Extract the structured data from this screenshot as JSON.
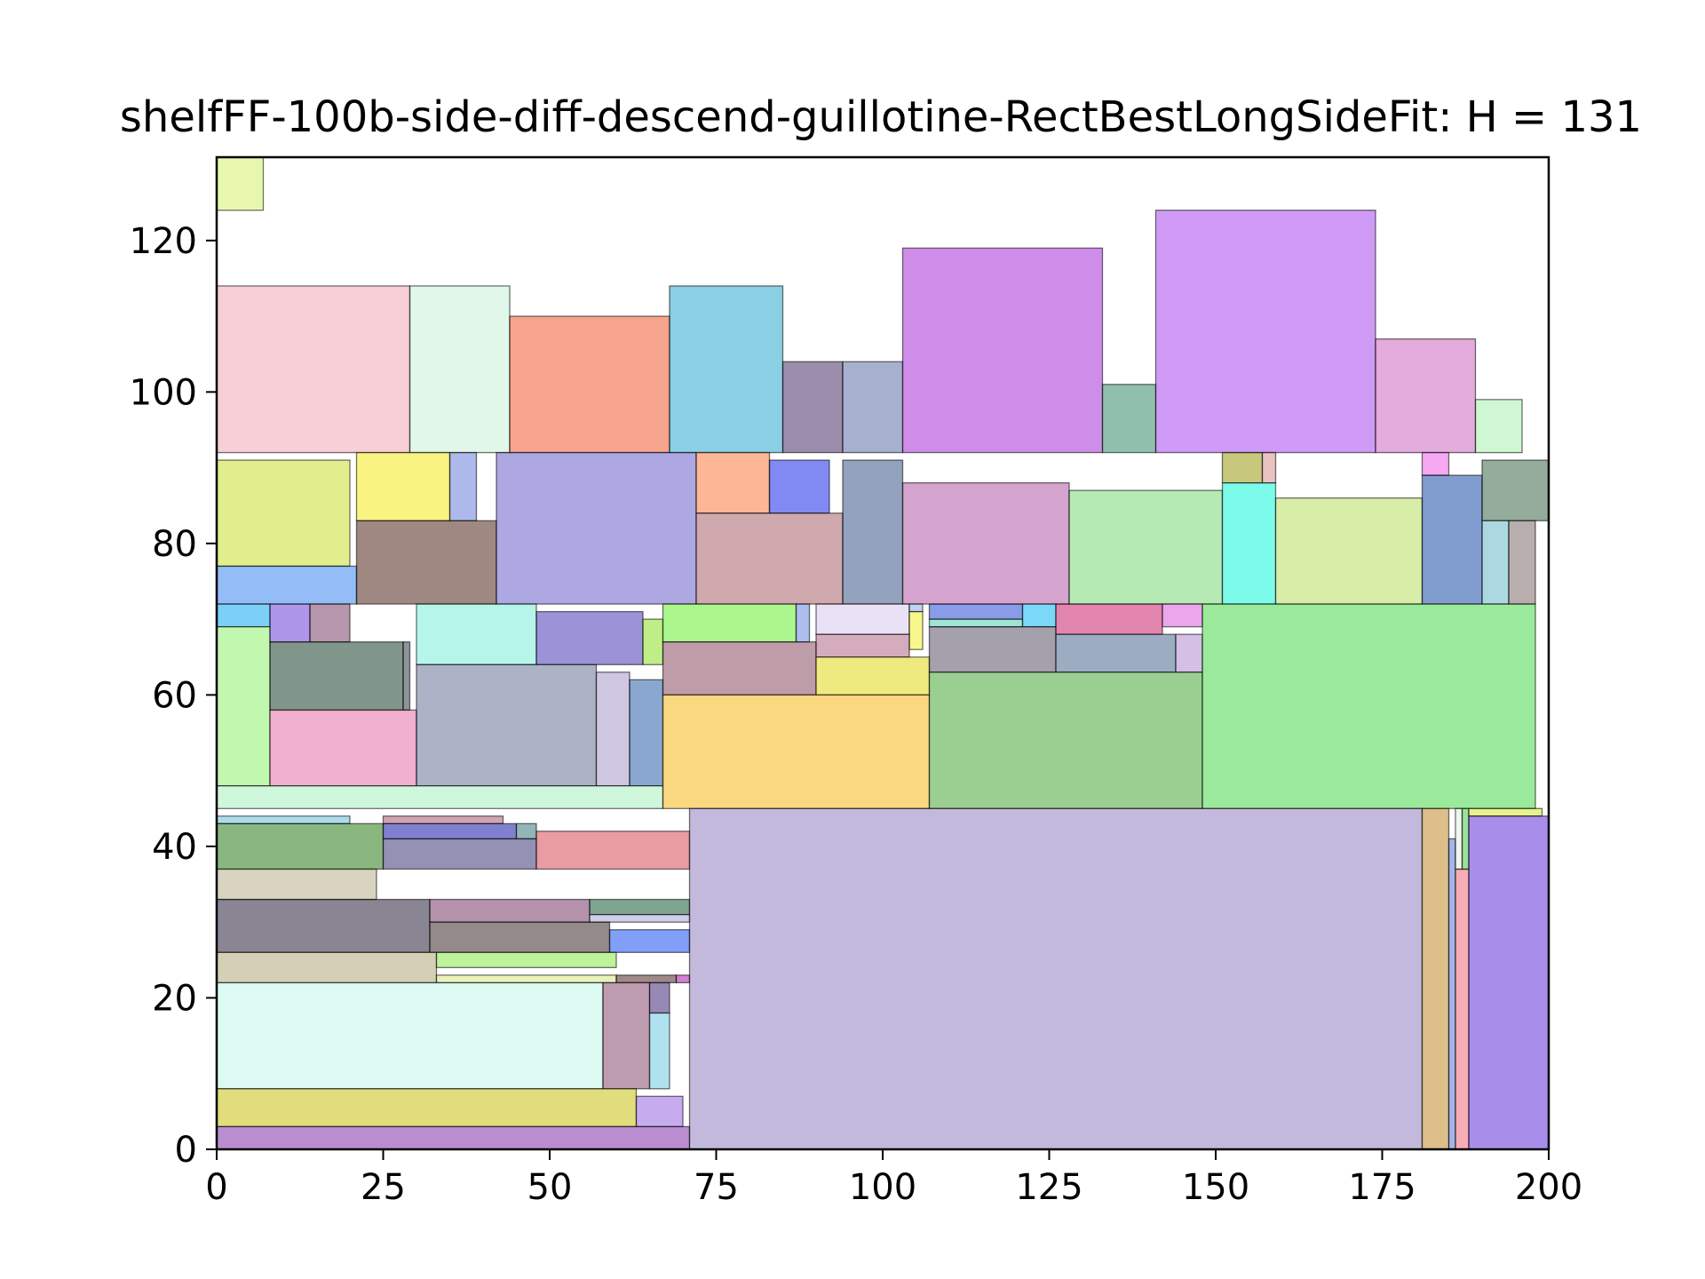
{
  "chart_data": {
    "type": "rectangle-packing",
    "title": "shelfFF-100b-side-diff-descend-guillotine-RectBestLongSideFit: H = 131",
    "xlabel": "",
    "ylabel": "",
    "xlim": [
      0,
      200
    ],
    "ylim": [
      0,
      131
    ],
    "grid": false,
    "x_ticks": [
      0,
      25,
      50,
      75,
      100,
      125,
      150,
      175,
      200
    ],
    "y_ticks": [
      0,
      20,
      40,
      60,
      80,
      100,
      120
    ],
    "x_tick_labels": [
      "0",
      "25",
      "50",
      "75",
      "100",
      "125",
      "150",
      "175",
      "200"
    ],
    "y_tick_labels": [
      "0",
      "20",
      "40",
      "60",
      "80",
      "100",
      "120"
    ],
    "rects": [
      {
        "x": 0,
        "y": 124,
        "w": 7,
        "h": 7,
        "color": "#d4f26a"
      },
      {
        "x": 0,
        "y": 92,
        "w": 29,
        "h": 22,
        "color": "#eea8b6"
      },
      {
        "x": 29,
        "y": 92,
        "w": 15,
        "h": 22,
        "color": "#c8f0d8"
      },
      {
        "x": 44,
        "y": 92,
        "w": 24,
        "h": 18,
        "color": "#f05a30"
      },
      {
        "x": 68,
        "y": 92,
        "w": 17,
        "h": 22,
        "color": "#2aa8cc"
      },
      {
        "x": 85,
        "y": 92,
        "w": 9,
        "h": 12,
        "color": "#4a3068"
      },
      {
        "x": 94,
        "y": 92,
        "w": 9,
        "h": 12,
        "color": "#6070a8"
      },
      {
        "x": 103,
        "y": 92,
        "w": 30,
        "h": 27,
        "color": "#a830d8"
      },
      {
        "x": 133,
        "y": 92,
        "w": 8,
        "h": 9,
        "color": "#348a6a"
      },
      {
        "x": 141,
        "y": 92,
        "w": 33,
        "h": 32,
        "color": "#a848f0"
      },
      {
        "x": 174,
        "y": 92,
        "w": 15,
        "h": 15,
        "color": "#cc68c0"
      },
      {
        "x": 189,
        "y": 92,
        "w": 7,
        "h": 7,
        "color": "#a8f0b0"
      },
      {
        "x": 0,
        "y": 77,
        "w": 20,
        "h": 14,
        "color": "#c8e030"
      },
      {
        "x": 0,
        "y": 72,
        "w": 21,
        "h": 5,
        "color": "#3c86f0"
      },
      {
        "x": 21,
        "y": 83,
        "w": 14,
        "h": 9,
        "color": "#f4ea1c"
      },
      {
        "x": 35,
        "y": 83,
        "w": 4,
        "h": 9,
        "color": "#6a80d8"
      },
      {
        "x": 21,
        "y": 72,
        "w": 21,
        "h": 11,
        "color": "#52261c"
      },
      {
        "x": 42,
        "y": 72,
        "w": 30,
        "h": 20,
        "color": "#6a60c8"
      },
      {
        "x": 72,
        "y": 84,
        "w": 11,
        "h": 8,
        "color": "#fc7c40"
      },
      {
        "x": 83,
        "y": 84,
        "w": 9,
        "h": 7,
        "color": "#1a2ae8"
      },
      {
        "x": 72,
        "y": 72,
        "w": 22,
        "h": 12,
        "color": "#a8626a"
      },
      {
        "x": 94,
        "y": 72,
        "w": 9,
        "h": 19,
        "color": "#3a5888"
      },
      {
        "x": 103,
        "y": 72,
        "w": 25,
        "h": 16,
        "color": "#b05aa8"
      },
      {
        "x": 128,
        "y": 72,
        "w": 23,
        "h": 15,
        "color": "#78d878"
      },
      {
        "x": 151,
        "y": 88,
        "w": 6,
        "h": 4,
        "color": "#9a9a10"
      },
      {
        "x": 157,
        "y": 88,
        "w": 2,
        "h": 4,
        "color": "#d89090"
      },
      {
        "x": 151,
        "y": 72,
        "w": 8,
        "h": 16,
        "color": "#10f8d8"
      },
      {
        "x": 159,
        "y": 72,
        "w": 22,
        "h": 14,
        "color": "#b8e060"
      },
      {
        "x": 181,
        "y": 89,
        "w": 4,
        "h": 3,
        "color": "#f060e8"
      },
      {
        "x": 181,
        "y": 72,
        "w": 9,
        "h": 17,
        "color": "#1a4aa8"
      },
      {
        "x": 190,
        "y": 83,
        "w": 10,
        "h": 8,
        "color": "#3a6848"
      },
      {
        "x": 190,
        "y": 72,
        "w": 4,
        "h": 11,
        "color": "#68b8c8"
      },
      {
        "x": 194,
        "y": 72,
        "w": 4,
        "h": 11,
        "color": "#806c6c"
      },
      {
        "x": 0,
        "y": 69,
        "w": 8,
        "h": 3,
        "color": "#10a8f0"
      },
      {
        "x": 0,
        "y": 48,
        "w": 8,
        "h": 21,
        "color": "#90f070"
      },
      {
        "x": 8,
        "y": 67,
        "w": 6,
        "h": 5,
        "color": "#6a40d8"
      },
      {
        "x": 14,
        "y": 67,
        "w": 6,
        "h": 5,
        "color": "#784068"
      },
      {
        "x": 8,
        "y": 58,
        "w": 20,
        "h": 9,
        "color": "#18402a"
      },
      {
        "x": 28,
        "y": 58,
        "w": 1,
        "h": 9,
        "color": "#303848"
      },
      {
        "x": 8,
        "y": 48,
        "w": 22,
        "h": 10,
        "color": "#e870a8"
      },
      {
        "x": 30,
        "y": 64,
        "w": 18,
        "h": 8,
        "color": "#78ecd8"
      },
      {
        "x": 48,
        "y": 64,
        "w": 16,
        "h": 7,
        "color": "#4a38b8"
      },
      {
        "x": 64,
        "y": 64,
        "w": 3,
        "h": 6,
        "color": "#88e020"
      },
      {
        "x": 30,
        "y": 48,
        "w": 27,
        "h": 16,
        "color": "#6a7498"
      },
      {
        "x": 57,
        "y": 48,
        "w": 5,
        "h": 15,
        "color": "#a898c8"
      },
      {
        "x": 62,
        "y": 48,
        "w": 5,
        "h": 14,
        "color": "#2a60a8"
      },
      {
        "x": 0,
        "y": 45,
        "w": 67,
        "h": 3,
        "color": "#a8f0c0"
      },
      {
        "x": 67,
        "y": 67,
        "w": 20,
        "h": 5,
        "color": "#68f030"
      },
      {
        "x": 87,
        "y": 67,
        "w": 2,
        "h": 5,
        "color": "#6888e0"
      },
      {
        "x": 67,
        "y": 60,
        "w": 23,
        "h": 7,
        "color": "#884a60"
      },
      {
        "x": 90,
        "y": 68,
        "w": 14,
        "h": 4,
        "color": "#d8c8f0"
      },
      {
        "x": 104,
        "y": 71,
        "w": 2,
        "h": 1,
        "color": "#88b0e8"
      },
      {
        "x": 104,
        "y": 66,
        "w": 2,
        "h": 5,
        "color": "#f0f030"
      },
      {
        "x": 90,
        "y": 65,
        "w": 14,
        "h": 3,
        "color": "#b06888"
      },
      {
        "x": 90,
        "y": 60,
        "w": 17,
        "h": 5,
        "color": "#e0d818"
      },
      {
        "x": 67,
        "y": 45,
        "w": 40,
        "h": 15,
        "color": "#f4b818"
      },
      {
        "x": 107,
        "y": 70,
        "w": 14,
        "h": 2,
        "color": "#2a48d8"
      },
      {
        "x": 107,
        "y": 69,
        "w": 14,
        "h": 1,
        "color": "#50d0b0"
      },
      {
        "x": 121,
        "y": 69,
        "w": 5,
        "h": 3,
        "color": "#10b8f0"
      },
      {
        "x": 107,
        "y": 63,
        "w": 19,
        "h": 6,
        "color": "#5a5268"
      },
      {
        "x": 126,
        "y": 68,
        "w": 16,
        "h": 4,
        "color": "#c8206a"
      },
      {
        "x": 142,
        "y": 69,
        "w": 6,
        "h": 3,
        "color": "#d860d8"
      },
      {
        "x": 126,
        "y": 63,
        "w": 18,
        "h": 5,
        "color": "#4a6a90"
      },
      {
        "x": 144,
        "y": 63,
        "w": 4,
        "h": 5,
        "color": "#b08ad0"
      },
      {
        "x": 107,
        "y": 45,
        "w": 41,
        "h": 18,
        "color": "#48a838"
      },
      {
        "x": 148,
        "y": 45,
        "w": 50,
        "h": 27,
        "color": "#48d848"
      },
      {
        "x": 0,
        "y": 43,
        "w": 20,
        "h": 1,
        "color": "#68c0d8"
      },
      {
        "x": 0,
        "y": 37,
        "w": 25,
        "h": 6,
        "color": "#2a7a18"
      },
      {
        "x": 25,
        "y": 43,
        "w": 18,
        "h": 1,
        "color": "#a85a78"
      },
      {
        "x": 25,
        "y": 41,
        "w": 20,
        "h": 2,
        "color": "#1a18a8"
      },
      {
        "x": 45,
        "y": 41,
        "w": 3,
        "h": 2,
        "color": "#3a7878"
      },
      {
        "x": 25,
        "y": 37,
        "w": 23,
        "h": 4,
        "color": "#3a3878"
      },
      {
        "x": 48,
        "y": 37,
        "w": 23,
        "h": 5,
        "color": "#d84a58"
      },
      {
        "x": 0,
        "y": 33,
        "w": 24,
        "h": 4,
        "color": "#b8b08a"
      },
      {
        "x": 0,
        "y": 26,
        "w": 32,
        "h": 7,
        "color": "#282038"
      },
      {
        "x": 32,
        "y": 30,
        "w": 24,
        "h": 3,
        "color": "#783868"
      },
      {
        "x": 56,
        "y": 31,
        "w": 15,
        "h": 2,
        "color": "#185a38"
      },
      {
        "x": 56,
        "y": 30,
        "w": 15,
        "h": 1,
        "color": "#a8a8d8"
      },
      {
        "x": 32,
        "y": 26,
        "w": 27,
        "h": 4,
        "color": "#3a2a28"
      },
      {
        "x": 59,
        "y": 26,
        "w": 12,
        "h": 3,
        "color": "#1a50f0"
      },
      {
        "x": 0,
        "y": 22,
        "w": 33,
        "h": 4,
        "color": "#b0a878"
      },
      {
        "x": 33,
        "y": 24,
        "w": 27,
        "h": 2,
        "color": "#88e848"
      },
      {
        "x": 33,
        "y": 22,
        "w": 27,
        "h": 1,
        "color": "#d8e880"
      },
      {
        "x": 60,
        "y": 22,
        "w": 9,
        "h": 1,
        "color": "#502828"
      },
      {
        "x": 69,
        "y": 22,
        "w": 2,
        "h": 1,
        "color": "#a81aa8"
      },
      {
        "x": 0,
        "y": 8,
        "w": 58,
        "h": 14,
        "color": "#c0f4e8"
      },
      {
        "x": 58,
        "y": 8,
        "w": 7,
        "h": 14,
        "color": "#884a70"
      },
      {
        "x": 65,
        "y": 18,
        "w": 3,
        "h": 4,
        "color": "#402a78"
      },
      {
        "x": 65,
        "y": 8,
        "w": 3,
        "h": 10,
        "color": "#70c8e0"
      },
      {
        "x": 0,
        "y": 3,
        "w": 63,
        "h": 5,
        "color": "#c8c010"
      },
      {
        "x": 63,
        "y": 3,
        "w": 7,
        "h": 4,
        "color": "#9868e0"
      },
      {
        "x": 0,
        "y": 0,
        "w": 71,
        "h": 3,
        "color": "#8030a8"
      },
      {
        "x": 71,
        "y": 0,
        "w": 110,
        "h": 45,
        "color": "#9080c0"
      },
      {
        "x": 181,
        "y": 0,
        "w": 4,
        "h": 45,
        "color": "#c08a28"
      },
      {
        "x": 185,
        "y": 0,
        "w": 1,
        "h": 41,
        "color": "#5a78d8"
      },
      {
        "x": 186,
        "y": 0,
        "w": 2,
        "h": 37,
        "color": "#f06a78"
      },
      {
        "x": 186,
        "y": 37,
        "w": 1,
        "h": 8,
        "color": "#e0f0e0"
      },
      {
        "x": 187,
        "y": 37,
        "w": 1,
        "h": 8,
        "color": "#48c848"
      },
      {
        "x": 188,
        "y": 44,
        "w": 11,
        "h": 1,
        "color": "#d0e830"
      },
      {
        "x": 188,
        "y": 0,
        "w": 12,
        "h": 44,
        "color": "#6030d8"
      }
    ]
  }
}
